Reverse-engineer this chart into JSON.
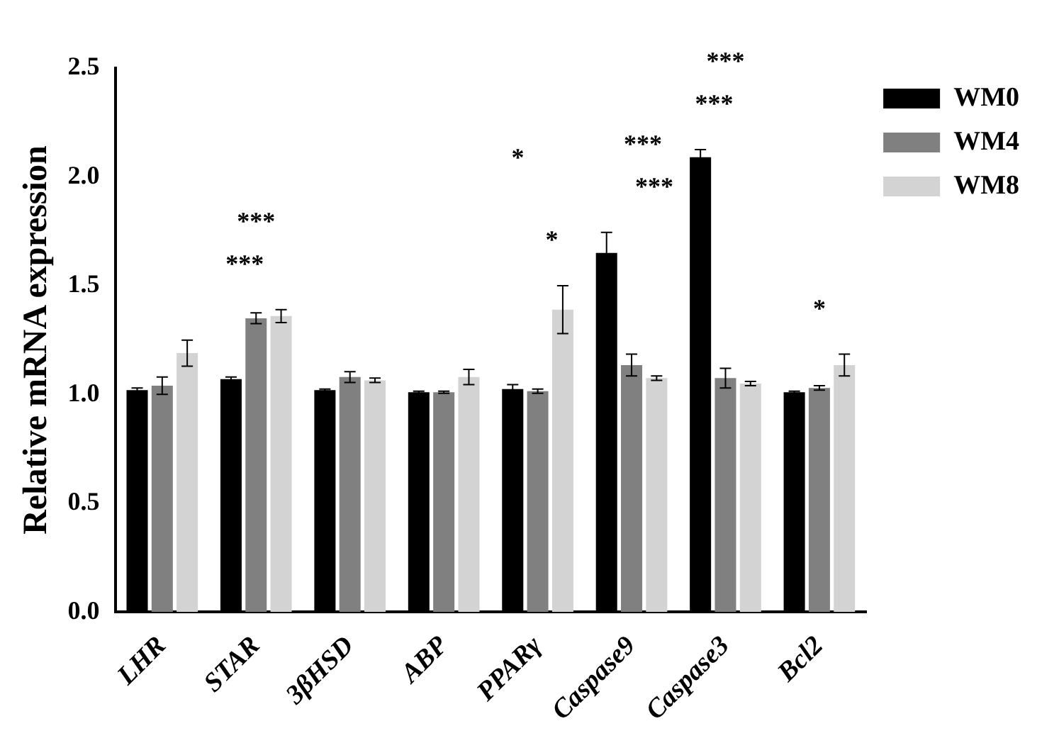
{
  "chart_data": {
    "type": "bar",
    "ylabel": "Relative mRNA expression",
    "categories": [
      "LHR",
      "STAR",
      "3βHSD",
      "ABP",
      "PPARγ",
      "Caspase9",
      "Caspase3",
      "Bcl2"
    ],
    "series": [
      {
        "name": "WM0",
        "color": "#000000",
        "values": [
          1.02,
          1.07,
          1.02,
          1.01,
          1.025,
          1.65,
          2.09,
          1.01
        ],
        "errors": [
          0.01,
          0.01,
          0.005,
          0.005,
          0.02,
          0.095,
          0.035,
          0.005
        ]
      },
      {
        "name": "WM4",
        "color": "#808080",
        "values": [
          1.04,
          1.35,
          1.08,
          1.01,
          1.015,
          1.135,
          1.075,
          1.03
        ],
        "errors": [
          0.04,
          0.025,
          0.025,
          0.005,
          0.01,
          0.05,
          0.045,
          0.01
        ]
      },
      {
        "name": "WM8",
        "color": "#d3d3d3",
        "values": [
          1.19,
          1.36,
          1.065,
          1.08,
          1.39,
          1.075,
          1.05,
          1.135
        ],
        "errors": [
          0.06,
          0.03,
          0.01,
          0.035,
          0.11,
          0.01,
          0.01,
          0.05
        ]
      }
    ],
    "ylim": [
      0,
      2.5
    ],
    "yticks": [
      {
        "value": 0,
        "label": "0.0"
      },
      {
        "value": 0.5,
        "label": "0.5"
      },
      {
        "value": 1,
        "label": "1.0"
      },
      {
        "value": 1.5,
        "label": "1.5"
      },
      {
        "value": 2,
        "label": "2.0"
      },
      {
        "value": 2.5,
        "label": "2.5"
      }
    ],
    "annotations": [
      "***",
      "***",
      "*",
      "*",
      "***",
      "***",
      "***",
      "***",
      "*"
    ],
    "grid": false,
    "legend": "top right"
  }
}
